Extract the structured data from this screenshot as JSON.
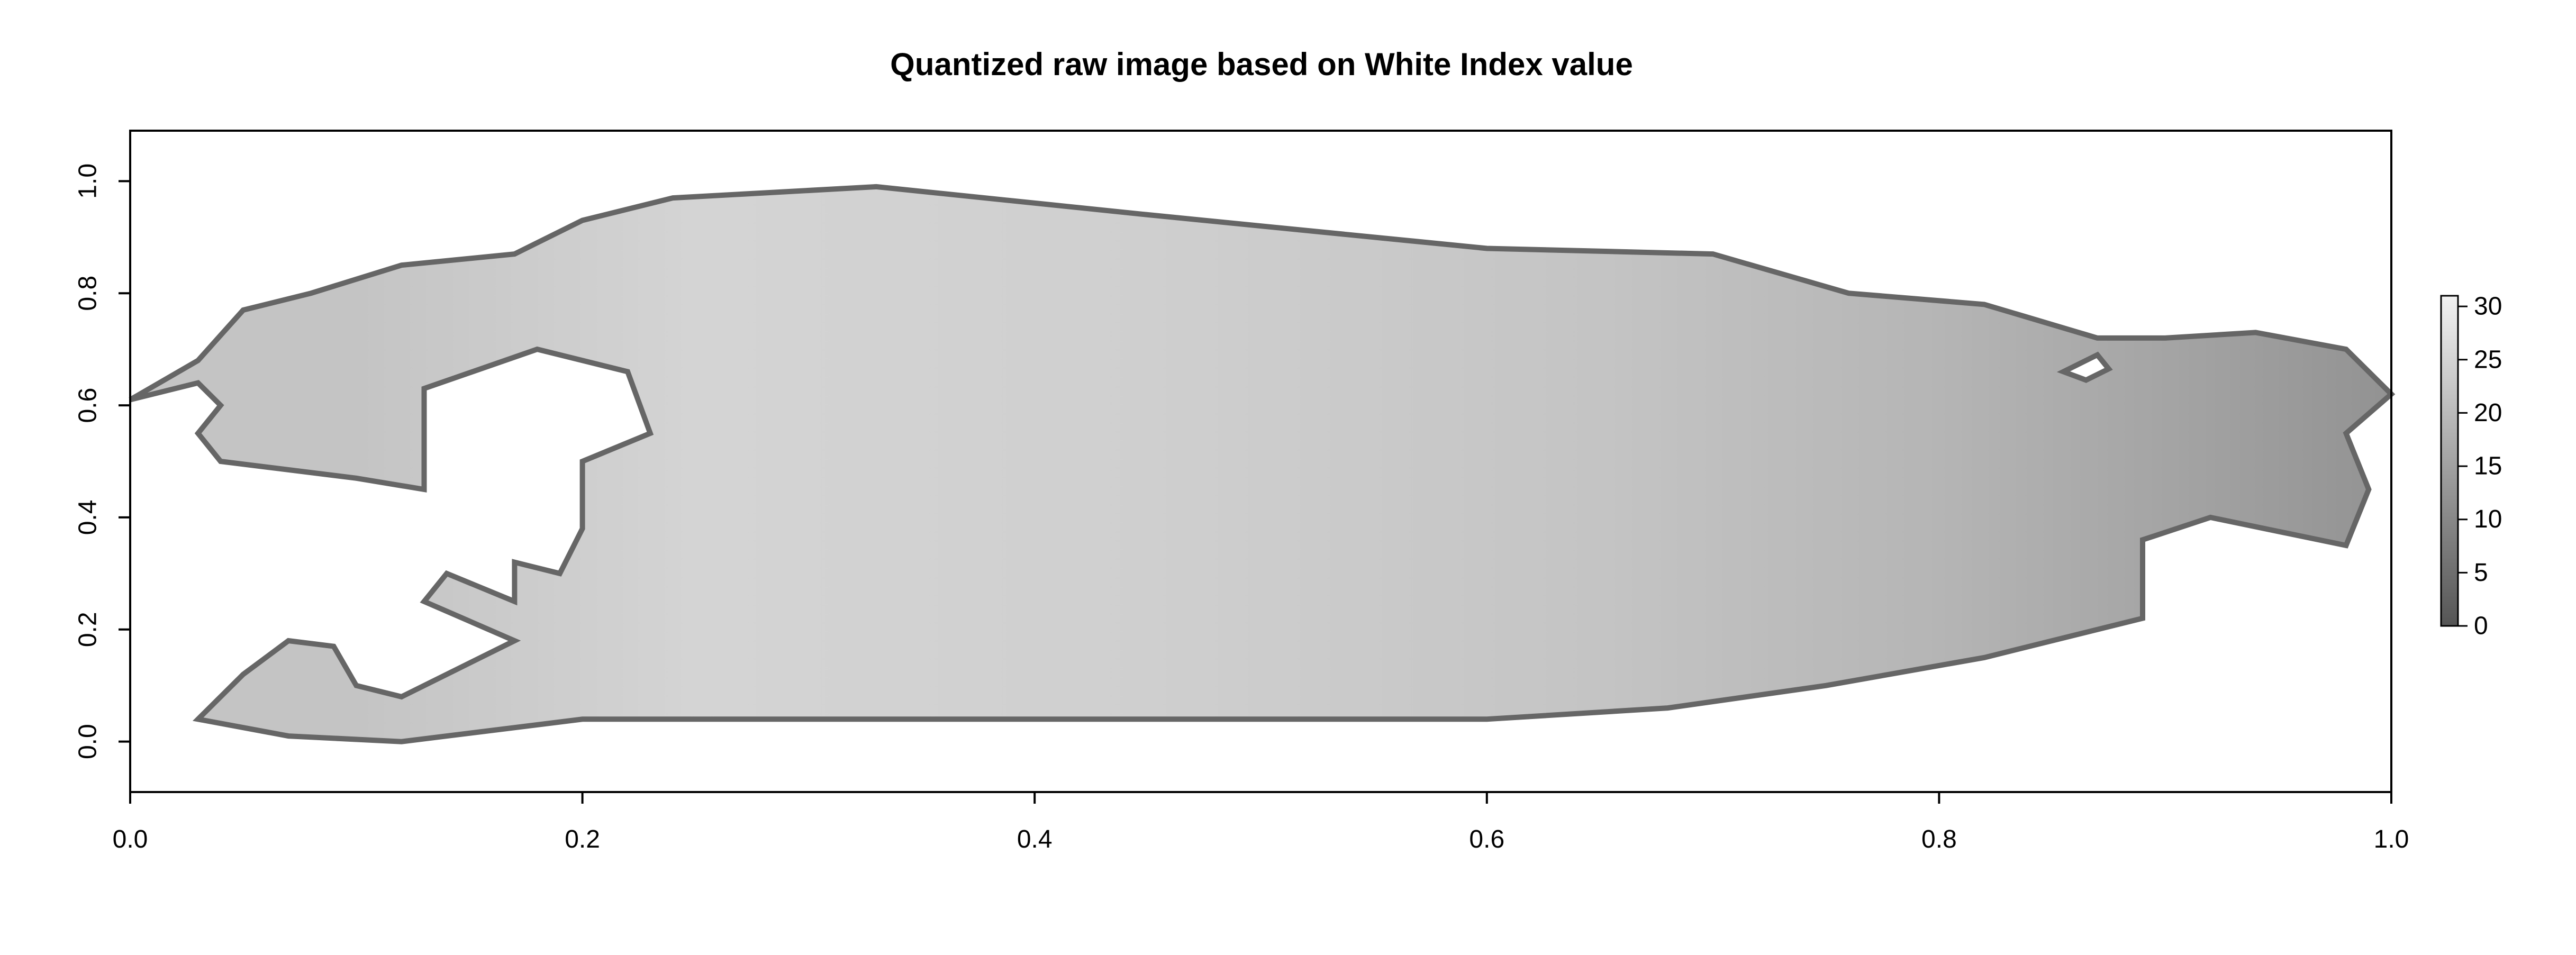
{
  "chart_data": {
    "type": "heatmap",
    "title": "Quantized raw image based on White Index value",
    "xlabel": "",
    "ylabel": "",
    "xlim": [
      0.0,
      1.0
    ],
    "ylim": [
      -0.09,
      1.09
    ],
    "x_ticks": [
      "0.0",
      "0.2",
      "0.4",
      "0.6",
      "0.8",
      "1.0"
    ],
    "x_tick_values": [
      0.0,
      0.2,
      0.4,
      0.6,
      0.8,
      1.0
    ],
    "y_ticks": [
      "0.0",
      "0.2",
      "0.4",
      "0.6",
      "0.8",
      "1.0"
    ],
    "y_tick_values": [
      0.0,
      0.2,
      0.4,
      0.6,
      0.8,
      1.0
    ],
    "colorbar": {
      "range": [
        0,
        31
      ],
      "ticks": [
        "0",
        "5",
        "10",
        "15",
        "20",
        "25",
        "30"
      ],
      "tick_values": [
        0,
        5,
        10,
        15,
        20,
        25,
        30
      ],
      "colors": [
        "#555555",
        "#f2f2f2"
      ]
    },
    "grid": false,
    "region_outline": [
      [
        0.0,
        0.61
      ],
      [
        0.03,
        0.64
      ],
      [
        0.04,
        0.6
      ],
      [
        0.03,
        0.55
      ],
      [
        0.04,
        0.5
      ],
      [
        0.1,
        0.47
      ],
      [
        0.13,
        0.45
      ],
      [
        0.13,
        0.63
      ],
      [
        0.18,
        0.7
      ],
      [
        0.22,
        0.66
      ],
      [
        0.23,
        0.55
      ],
      [
        0.2,
        0.5
      ],
      [
        0.2,
        0.38
      ],
      [
        0.19,
        0.3
      ],
      [
        0.17,
        0.32
      ],
      [
        0.17,
        0.25
      ],
      [
        0.14,
        0.3
      ],
      [
        0.13,
        0.25
      ],
      [
        0.17,
        0.18
      ],
      [
        0.12,
        0.08
      ],
      [
        0.1,
        0.1
      ],
      [
        0.09,
        0.17
      ],
      [
        0.07,
        0.18
      ],
      [
        0.05,
        0.12
      ],
      [
        0.03,
        0.04
      ],
      [
        0.07,
        0.01
      ],
      [
        0.12,
        0.0
      ],
      [
        0.2,
        0.04
      ],
      [
        0.3,
        0.04
      ],
      [
        0.4,
        0.04
      ],
      [
        0.5,
        0.04
      ],
      [
        0.6,
        0.04
      ],
      [
        0.68,
        0.06
      ],
      [
        0.75,
        0.1
      ],
      [
        0.82,
        0.15
      ],
      [
        0.89,
        0.22
      ],
      [
        0.89,
        0.36
      ],
      [
        0.92,
        0.4
      ],
      [
        0.98,
        0.35
      ],
      [
        0.99,
        0.45
      ],
      [
        0.98,
        0.55
      ],
      [
        1.0,
        0.62
      ],
      [
        0.98,
        0.7
      ],
      [
        0.94,
        0.73
      ],
      [
        0.9,
        0.72
      ],
      [
        0.87,
        0.72
      ],
      [
        0.82,
        0.78
      ],
      [
        0.76,
        0.8
      ],
      [
        0.7,
        0.87
      ],
      [
        0.6,
        0.88
      ],
      [
        0.45,
        0.94
      ],
      [
        0.33,
        0.99
      ],
      [
        0.24,
        0.97
      ],
      [
        0.2,
        0.93
      ],
      [
        0.17,
        0.87
      ],
      [
        0.12,
        0.85
      ],
      [
        0.08,
        0.8
      ],
      [
        0.05,
        0.77
      ],
      [
        0.03,
        0.68
      ],
      [
        0.0,
        0.61
      ]
    ],
    "holes": [
      [
        [
          0.855,
          0.66
        ],
        [
          0.87,
          0.69
        ],
        [
          0.875,
          0.665
        ],
        [
          0.865,
          0.645
        ],
        [
          0.855,
          0.66
        ]
      ]
    ],
    "value_gradient": {
      "x": [
        0.0,
        0.1,
        0.25,
        0.45,
        0.65,
        0.8,
        0.92,
        1.0
      ],
      "value": [
        22,
        22,
        25,
        24,
        22,
        19,
        15,
        12
      ]
    }
  }
}
